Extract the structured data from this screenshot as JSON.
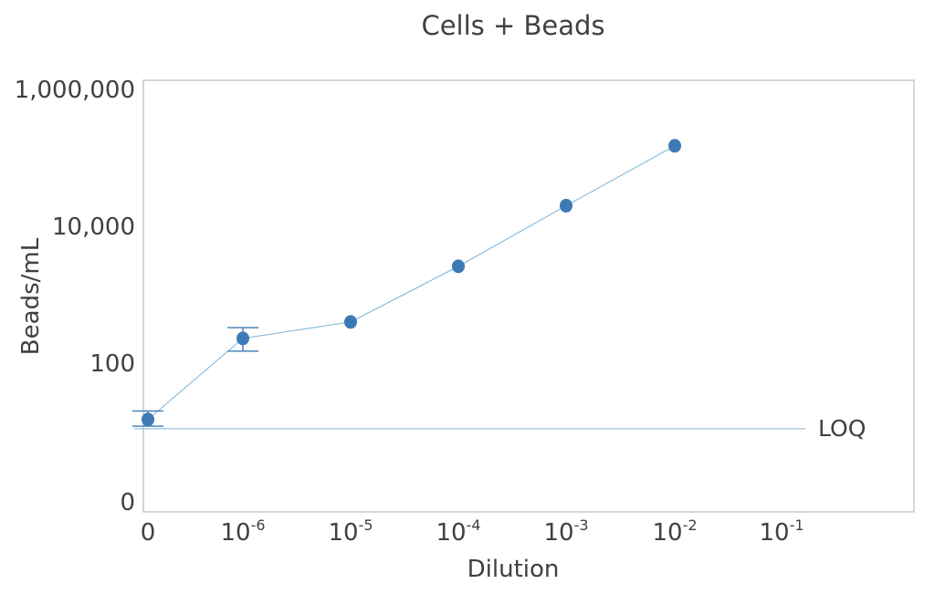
{
  "chart_data": {
    "type": "scatter",
    "title": "Cells + Beads",
    "xlabel": "Dilution",
    "ylabel": "Beads/mL",
    "x_ticks": [
      {
        "base": "0",
        "exp": ""
      },
      {
        "base": "10",
        "exp": "-6"
      },
      {
        "base": "10",
        "exp": "-5"
      },
      {
        "base": "10",
        "exp": "-4"
      },
      {
        "base": "10",
        "exp": "-3"
      },
      {
        "base": "10",
        "exp": "-2"
      },
      {
        "base": "10",
        "exp": "-1"
      }
    ],
    "y_ticks": [
      "1,000,000",
      "10,000",
      "100",
      "0"
    ],
    "y_scale": "log",
    "grid": false,
    "legend": "none",
    "series": [
      {
        "color": "#3d7ab5",
        "x": [
          "0",
          "1e-6",
          "1e-5",
          "1e-4",
          "1e-3",
          "1e-2"
        ],
        "y": [
          15,
          230,
          400,
          2600,
          20000,
          150000
        ],
        "error_low": [
          12,
          150,
          null,
          null,
          null,
          null
        ],
        "error_high": [
          20,
          330,
          null,
          null,
          null,
          null
        ]
      }
    ],
    "reference_lines": [
      {
        "label": "LOQ",
        "y": 11,
        "color": "#7ab3d9"
      }
    ]
  }
}
